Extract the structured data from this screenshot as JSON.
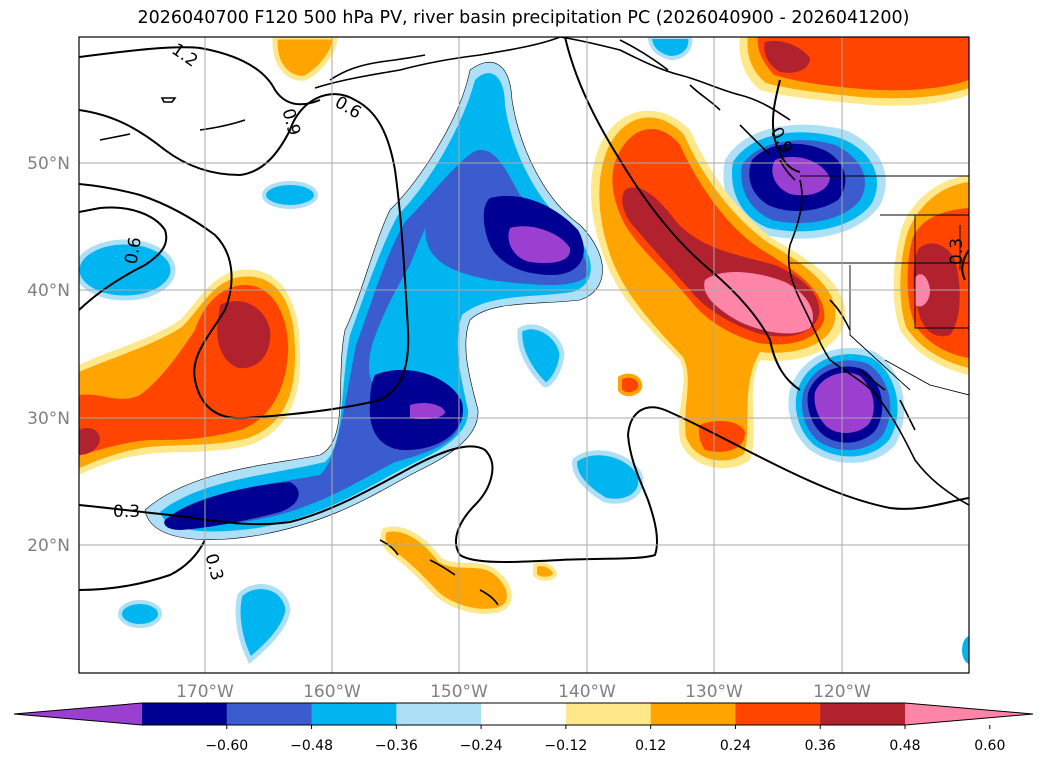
{
  "title": "2026040700 F120 500 hPa PV, river basin precipitation PC (2026040900 - 2026041200)",
  "map": {
    "lon_range": [
      -180,
      -110
    ],
    "lat_range": [
      10,
      60
    ],
    "lat_ticks": [
      "50°N",
      "40°N",
      "30°N",
      "20°N"
    ],
    "lon_ticks": [
      "170°W",
      "160°W",
      "150°W",
      "140°W",
      "130°W",
      "120°W"
    ],
    "gridlines": true,
    "contour_field": "500 hPa PV",
    "contour_labels": [
      "1.2",
      "0.9",
      "0.6",
      "0.6",
      "0.3",
      "0.3",
      "0.3",
      "0.9"
    ],
    "fill_field": "river basin precipitation PC"
  },
  "colorbar": {
    "levels": [
      "−0.60",
      "−0.48",
      "−0.36",
      "−0.24",
      "−0.12",
      "0.12",
      "0.24",
      "0.36",
      "0.48",
      "0.60"
    ],
    "colors": [
      "#9b3fd0",
      "#000092",
      "#3a5ccf",
      "#00b5f0",
      "#ade0f7",
      "#ffffff",
      "#ffe88a",
      "#ffa400",
      "#ff4500",
      "#b2222e",
      "#ff85a8"
    ],
    "extend": "both"
  }
}
